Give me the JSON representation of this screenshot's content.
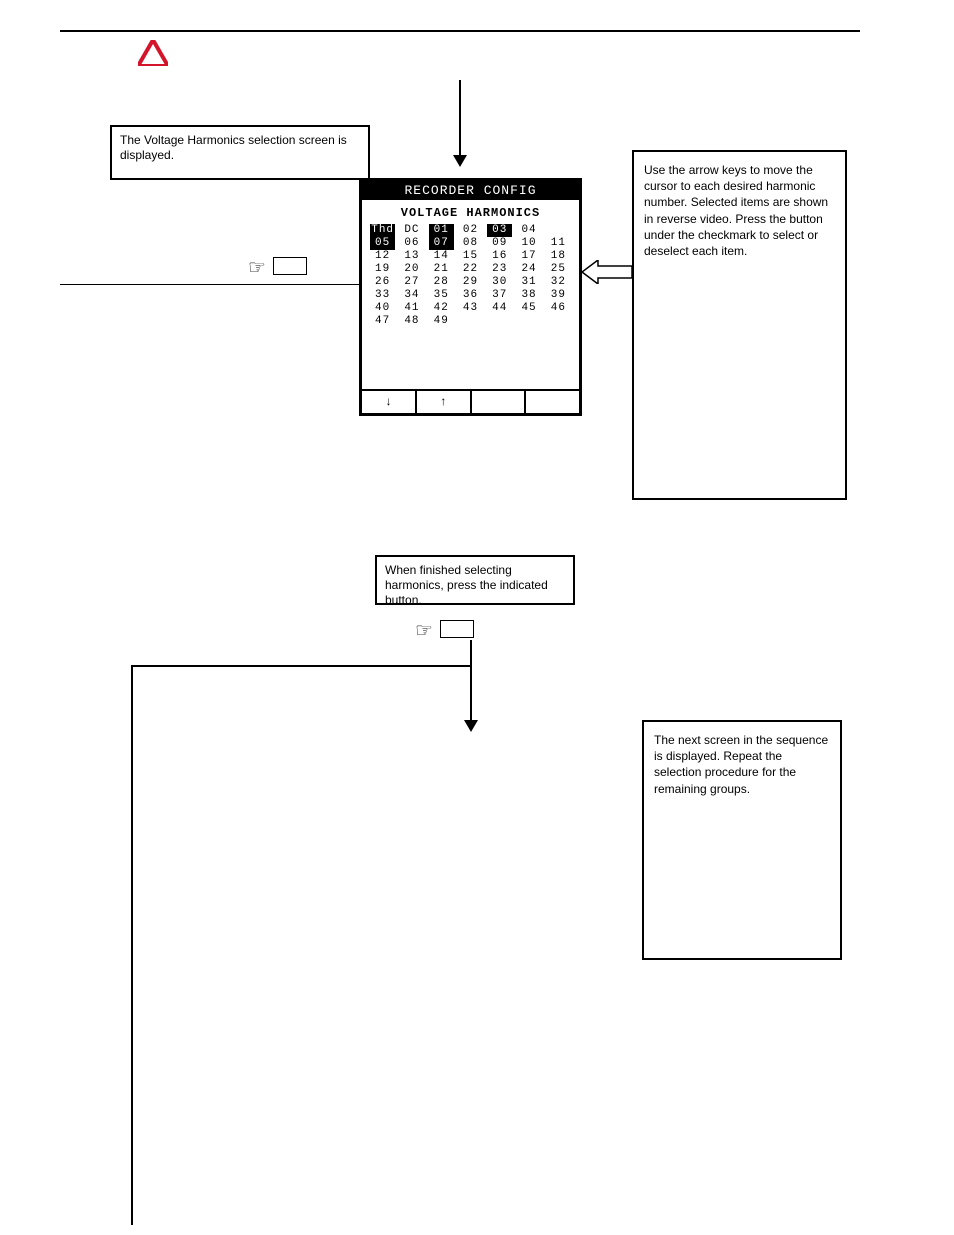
{
  "logo_color": "#d4142a",
  "header_rule_color": "#000000",
  "box_a": {
    "text": "The Voltage Harmonics selection screen is displayed."
  },
  "lcd": {
    "title": "RECORDER CONFIG",
    "subtitle": "VOLTAGE HARMONICS",
    "rows": [
      [
        {
          "t": "Thd",
          "sel": true
        },
        {
          "t": "DC",
          "sel": false
        },
        {
          "t": "01",
          "sel": true
        },
        {
          "t": "02",
          "sel": false
        },
        {
          "t": "03",
          "sel": true
        },
        {
          "t": "04",
          "sel": false
        },
        {
          "t": "",
          "sel": false
        }
      ],
      [
        {
          "t": "05",
          "sel": true
        },
        {
          "t": "06",
          "sel": false
        },
        {
          "t": "07",
          "sel": true
        },
        {
          "t": "08",
          "sel": false
        },
        {
          "t": "09",
          "sel": false
        },
        {
          "t": "10",
          "sel": false
        },
        {
          "t": "11",
          "sel": false
        }
      ],
      [
        {
          "t": "12",
          "sel": false
        },
        {
          "t": "13",
          "sel": false
        },
        {
          "t": "14",
          "sel": false
        },
        {
          "t": "15",
          "sel": false
        },
        {
          "t": "16",
          "sel": false
        },
        {
          "t": "17",
          "sel": false
        },
        {
          "t": "18",
          "sel": false
        }
      ],
      [
        {
          "t": "19",
          "sel": false
        },
        {
          "t": "20",
          "sel": false
        },
        {
          "t": "21",
          "sel": false
        },
        {
          "t": "22",
          "sel": false
        },
        {
          "t": "23",
          "sel": false
        },
        {
          "t": "24",
          "sel": false
        },
        {
          "t": "25",
          "sel": false
        }
      ],
      [
        {
          "t": "26",
          "sel": false
        },
        {
          "t": "27",
          "sel": false
        },
        {
          "t": "28",
          "sel": false
        },
        {
          "t": "29",
          "sel": false
        },
        {
          "t": "30",
          "sel": false
        },
        {
          "t": "31",
          "sel": false
        },
        {
          "t": "32",
          "sel": false
        }
      ],
      [
        {
          "t": "33",
          "sel": false
        },
        {
          "t": "34",
          "sel": false
        },
        {
          "t": "35",
          "sel": false
        },
        {
          "t": "36",
          "sel": false
        },
        {
          "t": "37",
          "sel": false
        },
        {
          "t": "38",
          "sel": false
        },
        {
          "t": "39",
          "sel": false
        }
      ],
      [
        {
          "t": "40",
          "sel": false
        },
        {
          "t": "41",
          "sel": false
        },
        {
          "t": "42",
          "sel": false
        },
        {
          "t": "43",
          "sel": false
        },
        {
          "t": "44",
          "sel": false
        },
        {
          "t": "45",
          "sel": false
        },
        {
          "t": "46",
          "sel": false
        }
      ],
      [
        {
          "t": "47",
          "sel": false
        },
        {
          "t": "48",
          "sel": false
        },
        {
          "t": "49",
          "sel": false
        },
        {
          "t": "",
          "sel": false
        },
        {
          "t": "",
          "sel": false
        },
        {
          "t": "",
          "sel": false
        },
        {
          "t": "",
          "sel": false
        }
      ]
    ],
    "footer": [
      "↓",
      "↑",
      "",
      ""
    ]
  },
  "sidebox1": {
    "text": "Use the arrow keys to move the cursor to each desired harmonic number. Selected items are shown in reverse video. Press the button under the checkmark to select or deselect each item."
  },
  "box_b": {
    "text": "When finished selecting harmonics, press the indicated button."
  },
  "sidebox2": {
    "text": "The next screen in the sequence is displayed. Repeat the selection procedure for the remaining groups."
  },
  "glyph_hand": "☞"
}
